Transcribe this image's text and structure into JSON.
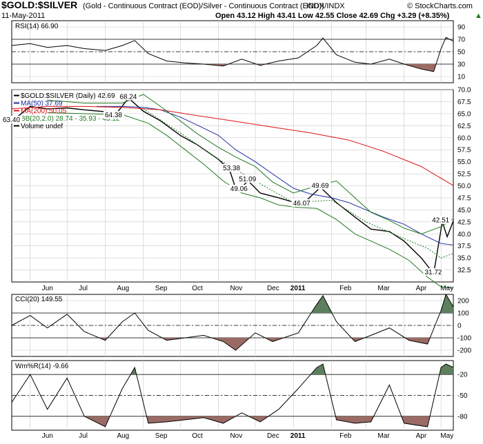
{
  "header": {
    "symbol": "$GOLD:$SILVER",
    "description": "(Gold - Continuous Contract (EOD)/Silver - Continuous Contract (EOD))",
    "exchange": "INDX/INDX",
    "watermark": "© StockCharts.com",
    "date": "11-May-2011",
    "quote": "Open 43.12  High 43.41  Low 42.55  Close 42.69  Chg +3.29 (+8.35%)",
    "quote_arrow": "▲"
  },
  "x_axis": {
    "labels": [
      "Jun",
      "Jul",
      "Aug",
      "Sep",
      "Oct",
      "Nov",
      "Dec",
      "2011",
      "Feb",
      "Mar",
      "Apr",
      "May"
    ],
    "bold_label": "2011"
  },
  "colors": {
    "price": "#000000",
    "ma50": "#1f2fa0",
    "ma200": "#e01010",
    "bb": "#1f7a1f",
    "oversold_fill": "#9a6b64",
    "overbought_fill": "#5e7f5e",
    "grid": "#c8c8c8"
  },
  "chart_data": [
    {
      "type": "line",
      "panel": "RSI",
      "legend": "RSI(14) 66.90",
      "yticks": [
        10,
        30,
        50,
        70,
        90
      ],
      "ylim": [
        0,
        100
      ],
      "reference_lines": [
        30,
        50,
        70
      ],
      "x_range": [
        "2010-05-17",
        "2011-05-11"
      ],
      "series": [
        {
          "name": "RSI(14)",
          "points": [
            [
              "2010-05-17",
              60
            ],
            [
              "2010-06-01",
              63
            ],
            [
              "2010-06-15",
              57
            ],
            [
              "2010-07-01",
              60
            ],
            [
              "2010-07-15",
              55
            ],
            [
              "2010-08-01",
              52
            ],
            [
              "2010-08-15",
              60
            ],
            [
              "2010-08-25",
              68
            ],
            [
              "2010-09-05",
              47
            ],
            [
              "2010-09-20",
              35
            ],
            [
              "2010-10-05",
              32
            ],
            [
              "2010-10-20",
              30
            ],
            [
              "2010-11-05",
              27
            ],
            [
              "2010-11-20",
              38
            ],
            [
              "2010-12-05",
              28
            ],
            [
              "2010-12-20",
              35
            ],
            [
              "2011-01-05",
              40
            ],
            [
              "2011-01-20",
              60
            ],
            [
              "2011-01-25",
              72
            ],
            [
              "2011-02-05",
              45
            ],
            [
              "2011-02-20",
              33
            ],
            [
              "2011-03-05",
              30
            ],
            [
              "2011-03-20",
              38
            ],
            [
              "2011-04-01",
              30
            ],
            [
              "2011-04-15",
              22
            ],
            [
              "2011-04-25",
              18
            ],
            [
              "2011-05-01",
              55
            ],
            [
              "2011-05-05",
              73
            ],
            [
              "2011-05-11",
              66.9
            ]
          ]
        }
      ]
    },
    {
      "type": "line",
      "panel": "Price",
      "title": "$GOLD:$SILVER (Daily) 42.69",
      "ylim": [
        30.0,
        70.0
      ],
      "yticks": [
        32.5,
        35.0,
        37.5,
        40.0,
        42.5,
        45.0,
        47.5,
        50.0,
        52.5,
        55.0,
        57.5,
        60.0,
        62.5,
        65.0,
        67.5,
        70.0
      ],
      "x_range": [
        "2010-05-17",
        "2011-05-11"
      ],
      "annotations": [
        {
          "text": "68.24",
          "x": "2010-08-20",
          "y": 68.24
        },
        {
          "text": "63.40",
          "x": "2010-05-17",
          "y": 63.4
        },
        {
          "text": "64.38",
          "x": "2010-08-08",
          "y": 64.38
        },
        {
          "text": "53.38",
          "x": "2010-11-12",
          "y": 53.38
        },
        {
          "text": "51.09",
          "x": "2010-11-25",
          "y": 51.09
        },
        {
          "text": "49.06",
          "x": "2010-11-18",
          "y": 49.06
        },
        {
          "text": "46.07",
          "x": "2011-01-08",
          "y": 46.07
        },
        {
          "text": "49.69",
          "x": "2011-01-23",
          "y": 49.69
        },
        {
          "text": "42.51",
          "x": "2011-05-01",
          "y": 42.51
        },
        {
          "text": "31.72",
          "x": "2011-04-25",
          "y": 31.72
        }
      ],
      "series": [
        {
          "name": "$GOLD:$SILVER",
          "legend": "$GOLD:$SILVER (Daily) 42.69",
          "points": [
            [
              "2010-05-17",
              63.4
            ],
            [
              "2010-06-01",
              66.5
            ],
            [
              "2010-06-15",
              66.0
            ],
            [
              "2010-07-01",
              66.2
            ],
            [
              "2010-07-15",
              65.8
            ],
            [
              "2010-08-01",
              65.4
            ],
            [
              "2010-08-08",
              64.38
            ],
            [
              "2010-08-20",
              68.24
            ],
            [
              "2010-09-01",
              65.5
            ],
            [
              "2010-09-15",
              63.5
            ],
            [
              "2010-10-01",
              60.5
            ],
            [
              "2010-10-15",
              58.5
            ],
            [
              "2010-11-01",
              55.5
            ],
            [
              "2010-11-10",
              53.38
            ],
            [
              "2010-11-15",
              49.5
            ],
            [
              "2010-11-18",
              49.06
            ],
            [
              "2010-11-25",
              51.09
            ],
            [
              "2010-12-05",
              48.5
            ],
            [
              "2010-12-20",
              47.5
            ],
            [
              "2011-01-08",
              46.07
            ],
            [
              "2011-01-23",
              49.69
            ],
            [
              "2011-02-05",
              46.5
            ],
            [
              "2011-02-20",
              43.5
            ],
            [
              "2011-03-05",
              41.0
            ],
            [
              "2011-03-20",
              40.5
            ],
            [
              "2011-04-01",
              38.5
            ],
            [
              "2011-04-15",
              35.0
            ],
            [
              "2011-04-25",
              31.72
            ],
            [
              "2011-05-02",
              42.51
            ],
            [
              "2011-05-06",
              39.4
            ],
            [
              "2011-05-11",
              42.69
            ]
          ]
        },
        {
          "name": "MA(50)",
          "legend": "MA(50) 37.69",
          "points": [
            [
              "2010-07-25",
              66.5
            ],
            [
              "2010-08-15",
              66.5
            ],
            [
              "2010-09-01",
              66.3
            ],
            [
              "2010-09-15",
              65.8
            ],
            [
              "2010-10-01",
              64.3
            ],
            [
              "2010-10-15",
              62.6
            ],
            [
              "2010-11-01",
              60.5
            ],
            [
              "2010-11-15",
              57.5
            ],
            [
              "2010-12-01",
              55.0
            ],
            [
              "2010-12-15",
              52.5
            ],
            [
              "2011-01-01",
              49.5
            ],
            [
              "2011-01-15",
              48.3
            ],
            [
              "2011-02-01",
              47.5
            ],
            [
              "2011-02-15",
              46.5
            ],
            [
              "2011-03-01",
              45.0
            ],
            [
              "2011-03-15",
              43.5
            ],
            [
              "2011-04-01",
              42.0
            ],
            [
              "2011-04-15",
              40.0
            ],
            [
              "2011-05-01",
              38.0
            ],
            [
              "2011-05-11",
              37.69
            ]
          ]
        },
        {
          "name": "MA(200)",
          "legend": "MA(200) 50.05",
          "points": [
            [
              "2010-05-17",
              66.0
            ],
            [
              "2010-06-15",
              66.5
            ],
            [
              "2010-07-15",
              66.5
            ],
            [
              "2010-08-15",
              66.3
            ],
            [
              "2010-09-15",
              65.8
            ],
            [
              "2010-10-15",
              64.6
            ],
            [
              "2010-11-15",
              63.4
            ],
            [
              "2010-12-15",
              62.2
            ],
            [
              "2011-01-15",
              61.0
            ],
            [
              "2011-02-15",
              59.5
            ],
            [
              "2011-03-15",
              57.2
            ],
            [
              "2011-04-15",
              54.0
            ],
            [
              "2011-05-11",
              50.05
            ]
          ]
        },
        {
          "name": "BB upper",
          "legend": "BB(20,2.0) 28.74 - 35.93 - 43.12",
          "points": [
            [
              "2010-06-15",
              67.8
            ],
            [
              "2010-07-15",
              67.2
            ],
            [
              "2010-08-15",
              67.2
            ],
            [
              "2010-09-01",
              69.0
            ],
            [
              "2010-09-15",
              66.5
            ],
            [
              "2010-10-01",
              63.5
            ],
            [
              "2010-10-15",
              60.8
            ],
            [
              "2010-11-01",
              58.0
            ],
            [
              "2010-11-15",
              56.0
            ],
            [
              "2010-12-01",
              54.0
            ],
            [
              "2010-12-15",
              50.8
            ],
            [
              "2011-01-01",
              48.5
            ],
            [
              "2011-01-20",
              50.0
            ],
            [
              "2011-02-05",
              51.0
            ],
            [
              "2011-02-20",
              47.5
            ],
            [
              "2011-03-05",
              44.5
            ],
            [
              "2011-03-20",
              42.8
            ],
            [
              "2011-04-01",
              41.2
            ],
            [
              "2011-04-15",
              40.0
            ],
            [
              "2011-05-01",
              41.5
            ],
            [
              "2011-05-11",
              43.12
            ]
          ]
        },
        {
          "name": "BB middle",
          "points": [
            [
              "2010-09-01",
              66.0
            ],
            [
              "2010-10-01",
              61.0
            ],
            [
              "2010-11-01",
              55.5
            ],
            [
              "2010-12-01",
              51.0
            ],
            [
              "2011-01-01",
              46.5
            ],
            [
              "2011-02-01",
              47.0
            ],
            [
              "2011-03-01",
              42.5
            ],
            [
              "2011-04-01",
              39.0
            ],
            [
              "2011-04-20",
              37.0
            ],
            [
              "2011-05-01",
              35.0
            ],
            [
              "2011-05-11",
              35.93
            ]
          ]
        },
        {
          "name": "BB lower",
          "points": [
            [
              "2010-06-15",
              65.2
            ],
            [
              "2010-07-15",
              65.0
            ],
            [
              "2010-08-15",
              64.8
            ],
            [
              "2010-09-05",
              63.0
            ],
            [
              "2010-09-20",
              60.5
            ],
            [
              "2010-10-05",
              57.5
            ],
            [
              "2010-10-20",
              54.5
            ],
            [
              "2010-11-05",
              51.0
            ],
            [
              "2010-11-20",
              48.5
            ],
            [
              "2010-12-05",
              47.5
            ],
            [
              "2010-12-20",
              46.0
            ],
            [
              "2011-01-05",
              45.5
            ],
            [
              "2011-01-20",
              45.3
            ],
            [
              "2011-02-05",
              43.0
            ],
            [
              "2011-02-20",
              40.0
            ],
            [
              "2011-03-05",
              38.5
            ],
            [
              "2011-03-20",
              36.8
            ],
            [
              "2011-04-05",
              34.5
            ],
            [
              "2011-04-20",
              31.0
            ],
            [
              "2011-05-01",
              29.0
            ],
            [
              "2011-05-11",
              28.74
            ]
          ]
        }
      ],
      "legend_entries": [
        "$GOLD:$SILVER (Daily) 42.69",
        "MA(50) 37.69",
        "MA(200) 50.05",
        "BB(20,2.0) 28.74 - 35.93 - 43.12",
        "Volume undef"
      ]
    },
    {
      "type": "line",
      "panel": "CCI",
      "legend": "CCI(20) 149.55",
      "ylim": [
        -250,
        250
      ],
      "yticks": [
        -200,
        -100,
        0,
        100,
        200
      ],
      "reference_lines": [
        -100,
        0,
        100
      ],
      "x_range": [
        "2010-05-17",
        "2011-05-11"
      ],
      "series": [
        {
          "name": "CCI(20)",
          "points": [
            [
              "2010-05-17",
              0
            ],
            [
              "2010-06-01",
              80
            ],
            [
              "2010-06-15",
              -20
            ],
            [
              "2010-07-01",
              90
            ],
            [
              "2010-07-15",
              -50
            ],
            [
              "2010-08-01",
              -120
            ],
            [
              "2010-08-15",
              30
            ],
            [
              "2010-08-25",
              100
            ],
            [
              "2010-09-05",
              -40
            ],
            [
              "2010-09-20",
              -120
            ],
            [
              "2010-10-05",
              -100
            ],
            [
              "2010-10-20",
              -80
            ],
            [
              "2010-11-05",
              -130
            ],
            [
              "2010-11-15",
              -200
            ],
            [
              "2010-12-01",
              -60
            ],
            [
              "2010-12-15",
              -130
            ],
            [
              "2011-01-05",
              -60
            ],
            [
              "2011-01-20",
              170
            ],
            [
              "2011-01-25",
              240
            ],
            [
              "2011-02-05",
              30
            ],
            [
              "2011-02-20",
              -130
            ],
            [
              "2011-03-05",
              -80
            ],
            [
              "2011-03-20",
              -20
            ],
            [
              "2011-04-05",
              -120
            ],
            [
              "2011-04-20",
              -150
            ],
            [
              "2011-05-01",
              120
            ],
            [
              "2011-05-05",
              250
            ],
            [
              "2011-05-11",
              149.55
            ]
          ]
        }
      ]
    },
    {
      "type": "line",
      "panel": "WilliamsR",
      "legend": "Wm%R(14) -9.66",
      "ylim": [
        -100,
        0
      ],
      "yticks": [
        -80,
        -50,
        -20
      ],
      "reference_lines": [
        -80,
        -50,
        -20
      ],
      "x_range": [
        "2010-05-17",
        "2011-05-11"
      ],
      "series": [
        {
          "name": "Wm%R(14)",
          "points": [
            [
              "2010-05-17",
              -60
            ],
            [
              "2010-06-01",
              -20
            ],
            [
              "2010-06-15",
              -70
            ],
            [
              "2010-07-01",
              -25
            ],
            [
              "2010-07-15",
              -80
            ],
            [
              "2010-08-01",
              -95
            ],
            [
              "2010-08-15",
              -40
            ],
            [
              "2010-08-25",
              -10
            ],
            [
              "2010-09-05",
              -90
            ],
            [
              "2010-09-20",
              -88
            ],
            [
              "2010-10-05",
              -85
            ],
            [
              "2010-10-20",
              -82
            ],
            [
              "2010-11-05",
              -90
            ],
            [
              "2010-11-20",
              -75
            ],
            [
              "2010-12-05",
              -88
            ],
            [
              "2010-12-20",
              -70
            ],
            [
              "2011-01-05",
              -40
            ],
            [
              "2011-01-20",
              -10
            ],
            [
              "2011-01-25",
              -5
            ],
            [
              "2011-02-05",
              -85
            ],
            [
              "2011-02-20",
              -90
            ],
            [
              "2011-03-05",
              -88
            ],
            [
              "2011-03-20",
              -35
            ],
            [
              "2011-04-01",
              -90
            ],
            [
              "2011-04-20",
              -95
            ],
            [
              "2011-05-01",
              -10
            ],
            [
              "2011-05-05",
              -5
            ],
            [
              "2011-05-11",
              -9.66
            ]
          ]
        }
      ]
    }
  ]
}
